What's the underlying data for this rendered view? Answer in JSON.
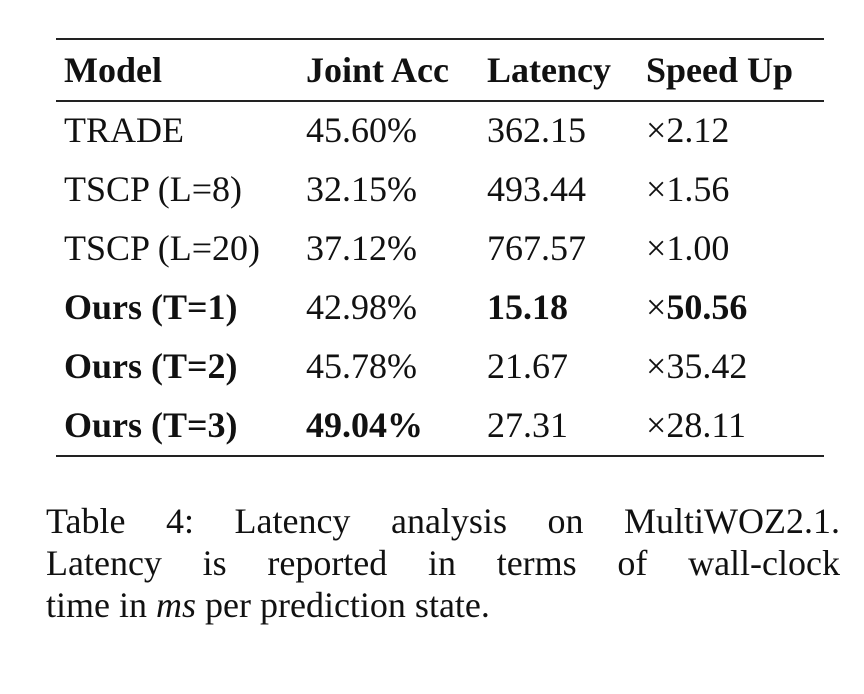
{
  "table": {
    "headers": [
      "Model",
      "Joint Acc",
      "Latency",
      "Speed Up"
    ],
    "rows": [
      {
        "model": "TRADE",
        "joint_acc": "45.60%",
        "latency": "362.15",
        "speed_prefix": "×",
        "speed_value": "2.12",
        "bold_model": false,
        "bold_acc": false,
        "bold_latency": false,
        "bold_speed": false
      },
      {
        "model": "TSCP (L=8)",
        "joint_acc": "32.15%",
        "latency": "493.44",
        "speed_prefix": "×",
        "speed_value": "1.56",
        "bold_model": false,
        "bold_acc": false,
        "bold_latency": false,
        "bold_speed": false
      },
      {
        "model": "TSCP (L=20)",
        "joint_acc": "37.12%",
        "latency": "767.57",
        "speed_prefix": "×",
        "speed_value": "1.00",
        "bold_model": false,
        "bold_acc": false,
        "bold_latency": false,
        "bold_speed": false
      },
      {
        "model": "Ours (T=1)",
        "joint_acc": "42.98%",
        "latency": "15.18",
        "speed_prefix": "×",
        "speed_value": "50.56",
        "bold_model": true,
        "bold_acc": false,
        "bold_latency": true,
        "bold_speed": true
      },
      {
        "model": "Ours (T=2)",
        "joint_acc": "45.78%",
        "latency": "21.67",
        "speed_prefix": "×",
        "speed_value": "35.42",
        "bold_model": true,
        "bold_acc": false,
        "bold_latency": false,
        "bold_speed": false
      },
      {
        "model": "Ours (T=3)",
        "joint_acc": "49.04%",
        "latency": "27.31",
        "speed_prefix": "×",
        "speed_value": "28.11",
        "bold_model": true,
        "bold_acc": true,
        "bold_latency": false,
        "bold_speed": false
      }
    ]
  },
  "caption": {
    "line1": "Table 4: Latency analysis on MultiWOZ2.1.",
    "line2": "Latency is reported in terms of wall-clock",
    "line3_pre": "time in ",
    "line3_em": "ms",
    "line3_post": " per prediction state."
  }
}
